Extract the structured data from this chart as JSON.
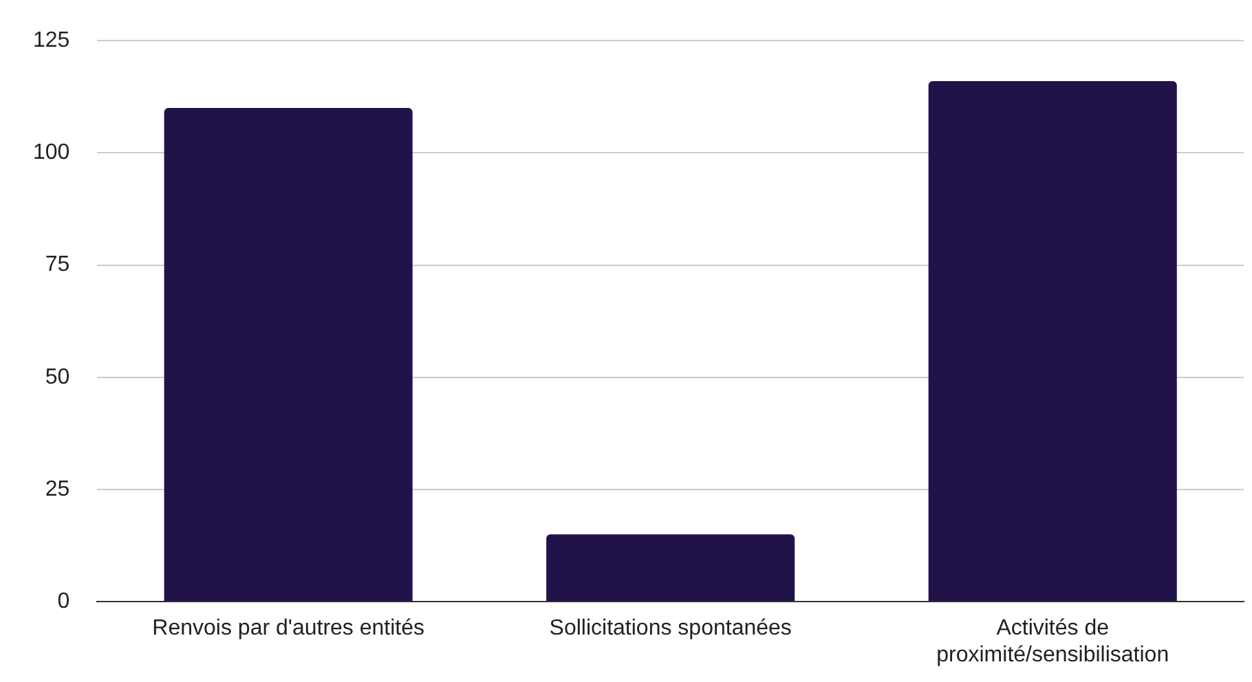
{
  "chart_data": {
    "type": "bar",
    "categories": [
      "Renvois par d'autres entités",
      "Sollicitations spontanées",
      "Activités de proximité/sensibilisation"
    ],
    "values": [
      110,
      15,
      116
    ],
    "color": "#21134a",
    "ylim": [
      0,
      125
    ],
    "yticks": [
      0,
      25,
      50,
      75,
      100,
      125
    ],
    "grid": "y",
    "legend": false
  }
}
